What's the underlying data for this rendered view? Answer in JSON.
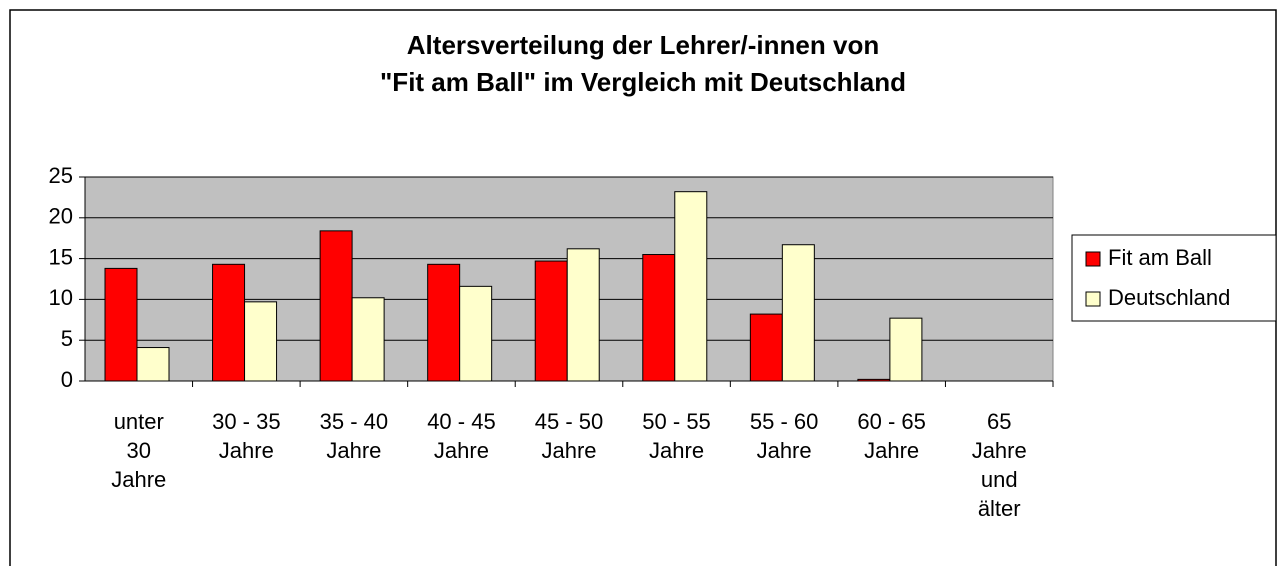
{
  "chart_data": {
    "type": "bar",
    "title": [
      "Altersverteilung der Lehrer/-innen von",
      "\"Fit am Ball\" im Vergleich mit Deutschland"
    ],
    "categories": [
      "unter 30 Jahre",
      "30 - 35 Jahre",
      "35 - 40 Jahre",
      "40 - 45 Jahre",
      "45 - 50 Jahre",
      "50 - 55 Jahre",
      "55 - 60 Jahre",
      "60 - 65 Jahre",
      "65 Jahre und älter"
    ],
    "series": [
      {
        "name": "Fit am Ball",
        "color": "#ff0000",
        "values": [
          13.8,
          14.3,
          18.4,
          14.3,
          14.7,
          15.5,
          8.2,
          0.2,
          0
        ]
      },
      {
        "name": "Deutschland",
        "color": "#ffffcc",
        "values": [
          4.1,
          9.7,
          10.2,
          11.6,
          16.2,
          23.2,
          16.7,
          7.7,
          0
        ]
      }
    ],
    "ylim": [
      0,
      25
    ],
    "yticks": [
      0,
      5,
      10,
      15,
      20,
      25
    ],
    "grid": true,
    "legend": "right"
  }
}
